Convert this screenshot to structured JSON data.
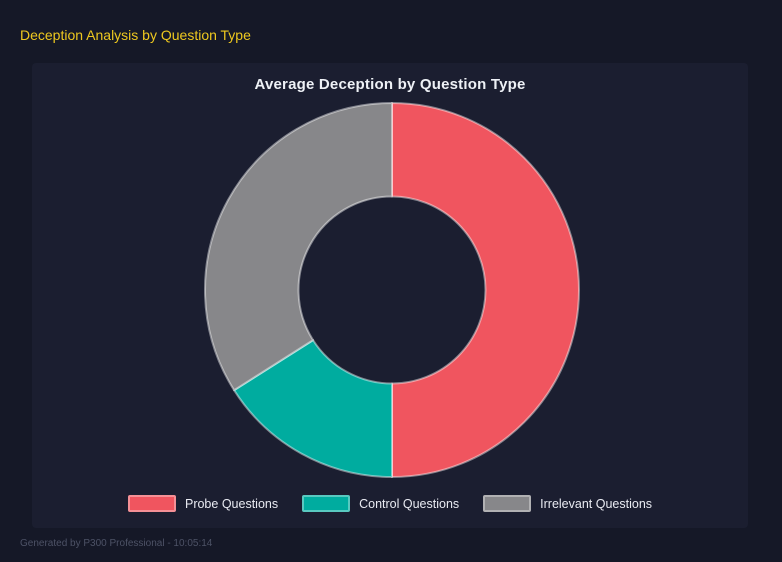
{
  "page": {
    "title": "Deception Analysis by Question Type",
    "footer": "Generated by P300 Professional - 10:05:14"
  },
  "colors": {
    "page_bg": "#151827",
    "panel_bg": "#1b1e30",
    "page_title": "#eec81f",
    "chart_title": "#eef1f6",
    "legend_text": "#e9ebf2",
    "footer_text": "#4d5266"
  },
  "chart_data": {
    "type": "pie",
    "donut": true,
    "cutout_ratio": 0.5,
    "title": "Average Deception by Question Type",
    "labels": [
      "Probe Questions",
      "Control Questions",
      "Irrelevant Questions"
    ],
    "values_percent": [
      50,
      16,
      34
    ],
    "colors": [
      "#f0555f",
      "#00ac9f",
      "#87878a"
    ],
    "start_angle_deg": 0,
    "direction": "clockwise",
    "legend_position": "bottom"
  }
}
